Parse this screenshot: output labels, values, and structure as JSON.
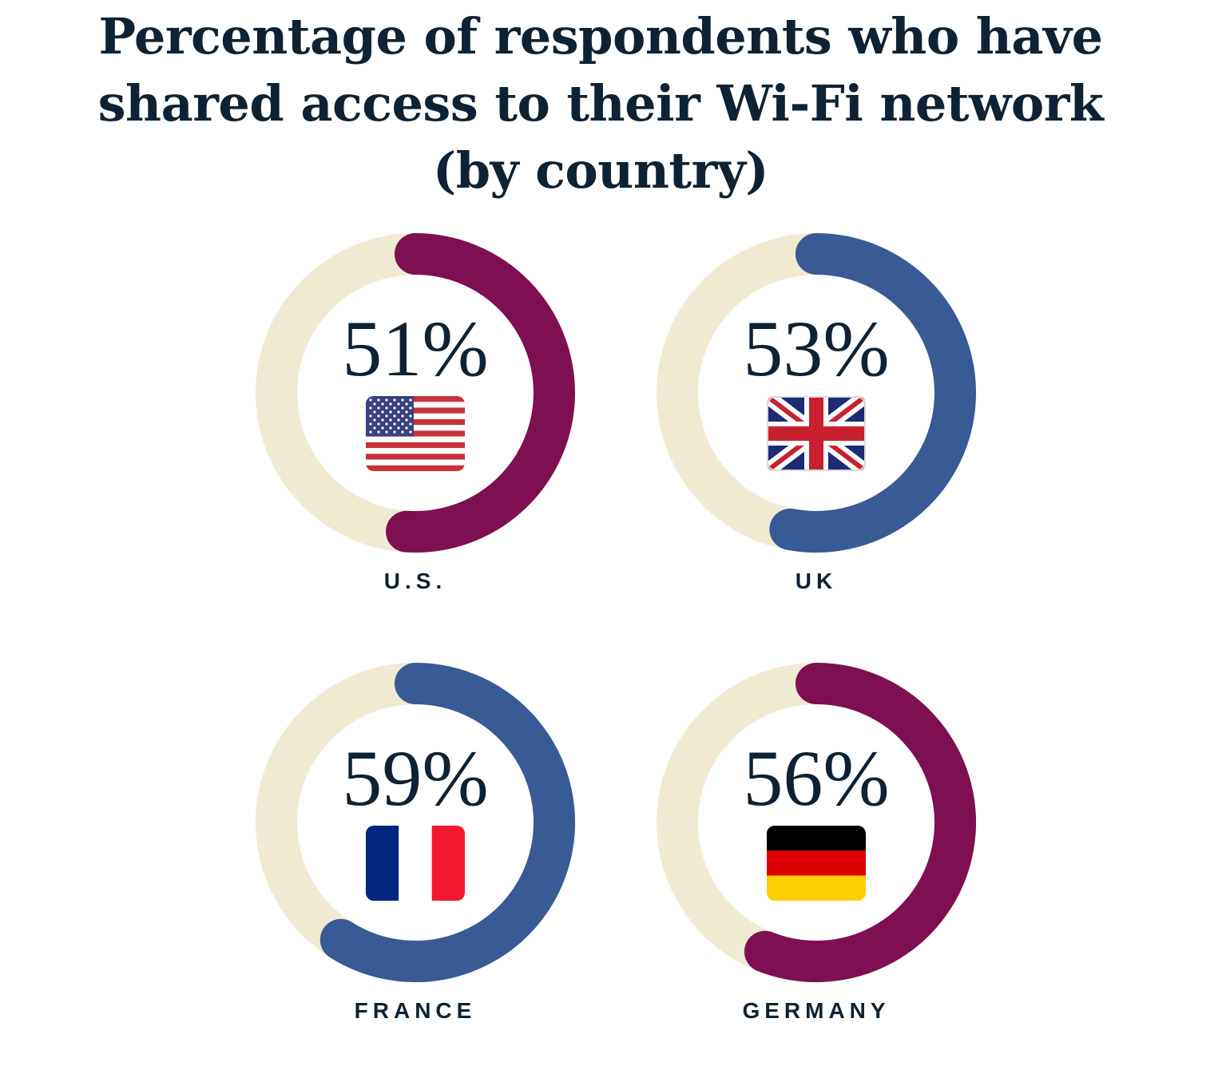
{
  "title_lines": [
    "Percentage of respondents who have",
    "shared access to their Wi-Fi network",
    "(by country)"
  ],
  "colors": {
    "track": "#f0ead2",
    "purple": "#7e0f50",
    "blue": "#385a95",
    "text": "#0f2233"
  },
  "chart_data": {
    "type": "donut",
    "title": "Percentage of respondents who have shared access to their Wi-Fi network (by country)",
    "unit": "%",
    "items": [
      {
        "country": "U.S.",
        "value": 51,
        "value_label": "51%",
        "color": "#7e0f50",
        "flag": "us-flag"
      },
      {
        "country": "UK",
        "value": 53,
        "value_label": "53%",
        "color": "#385a95",
        "flag": "uk-flag"
      },
      {
        "country": "FRANCE",
        "value": 59,
        "value_label": "59%",
        "color": "#385a95",
        "flag": "france-flag"
      },
      {
        "country": "GERMANY",
        "value": 56,
        "value_label": "56%",
        "color": "#7e0f50",
        "flag": "germany-flag"
      }
    ]
  }
}
